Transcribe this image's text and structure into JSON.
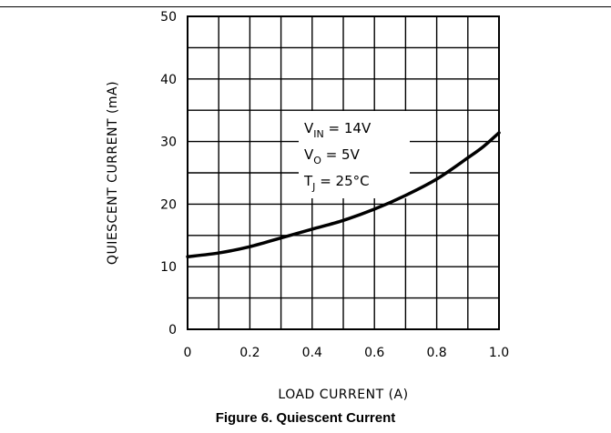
{
  "caption": "Figure 6. Quiescent Current",
  "chart_data": {
    "type": "line",
    "xlabel": "LOAD CURRENT (A)",
    "ylabel": "QUIESCENT CURRENT (mA)",
    "xlim": [
      0,
      1.0
    ],
    "ylim": [
      0,
      50
    ],
    "x_ticks": [
      "0",
      "0.2",
      "0.4",
      "0.6",
      "0.8",
      "1.0"
    ],
    "y_ticks": [
      "0",
      "10",
      "20",
      "30",
      "40",
      "50"
    ],
    "grid": true,
    "annotations": [
      {
        "base": "V",
        "sub": "IN",
        "rest": " = 14V"
      },
      {
        "base": "V",
        "sub": "O",
        "rest": " = 5V"
      },
      {
        "base": "T",
        "sub": "J",
        "rest": " = 25°C"
      }
    ],
    "series": [
      {
        "x": [
          0,
          0.1,
          0.2,
          0.3,
          0.4,
          0.5,
          0.6,
          0.7,
          0.8,
          0.9,
          0.95,
          1.0
        ],
        "y": [
          11.6,
          12.2,
          13.2,
          14.6,
          16.0,
          17.4,
          19.2,
          21.4,
          24.0,
          27.4,
          29.2,
          31.4
        ]
      }
    ]
  }
}
